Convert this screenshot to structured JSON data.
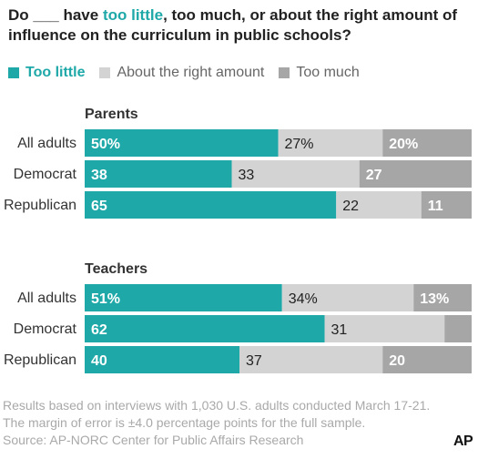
{
  "title": {
    "part1": "Do ___ have ",
    "highlight": "too little",
    "part2": ", too much, or about the right amount of influence on the curriculum in public schools?"
  },
  "legend": [
    {
      "label": "Too little",
      "color": "#1fa8a8"
    },
    {
      "label": "About the right amount",
      "color": "#d3d3d3"
    },
    {
      "label": "Too much",
      "color": "#a6a6a6"
    }
  ],
  "chart_data": {
    "type": "bar",
    "orientation": "horizontal",
    "stacked": true,
    "xlim": [
      0,
      100
    ],
    "series_names": [
      "Too little",
      "About the right amount",
      "Too much"
    ],
    "colors": [
      "#1fa8a8",
      "#d3d3d3",
      "#a6a6a6"
    ],
    "groups": [
      {
        "name": "Parents",
        "rows": [
          {
            "category": "All adults",
            "values": [
              50,
              27,
              20
            ],
            "labels": [
              "50%",
              "27%",
              "20%"
            ]
          },
          {
            "category": "Democrat",
            "values": [
              38,
              33,
              27
            ],
            "labels": [
              "38",
              "33",
              "27"
            ]
          },
          {
            "category": "Republican",
            "values": [
              65,
              22,
              11
            ],
            "labels": [
              "65",
              "22",
              "11"
            ]
          }
        ]
      },
      {
        "name": "Teachers",
        "rows": [
          {
            "category": "All adults",
            "values": [
              51,
              34,
              13
            ],
            "labels": [
              "51%",
              "34%",
              "13%"
            ]
          },
          {
            "category": "Democrat",
            "values": [
              62,
              31,
              5
            ],
            "labels": [
              "62",
              "31",
              ""
            ]
          },
          {
            "category": "Republican",
            "values": [
              40,
              37,
              20
            ],
            "labels": [
              "40",
              "37",
              "20"
            ]
          }
        ]
      }
    ]
  },
  "note": {
    "line1": "Results based on interviews with 1,030 U.S. adults conducted March 17-21.",
    "line2": "The margin of error is ±4.0 percentage points for the full sample.",
    "source": "Source: AP-NORC Center for Public Affairs Research"
  },
  "logo": "AP"
}
